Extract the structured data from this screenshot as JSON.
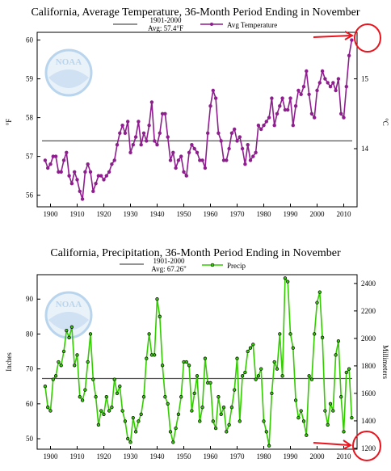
{
  "chart_data": [
    {
      "type": "line",
      "title": "California, Average Temperature, 36-Month Period Ending in November",
      "xlabel": "",
      "ylabel": "°F",
      "ylabel_right": "°C",
      "xlim": [
        1895,
        2015
      ],
      "ylim": [
        55.7,
        60.2
      ],
      "xticks": [
        "1900",
        "1910",
        "1920",
        "1930",
        "1940",
        "1950",
        "1960",
        "1970",
        "1980",
        "1990",
        "2000",
        "2010"
      ],
      "yticks": [
        "56",
        "57",
        "58",
        "59",
        "60"
      ],
      "yticks_right": [
        "14",
        "15"
      ],
      "grid": false,
      "legend_position": "top",
      "reference_line": {
        "label_lines": [
          "1901-2000",
          "Avg: 57.4°F"
        ],
        "value": 57.4
      },
      "series": [
        {
          "name": "Avg Temperature",
          "color": "#8e1d8e",
          "x": [
            1898,
            1899,
            1900,
            1901,
            1902,
            1903,
            1904,
            1905,
            1906,
            1907,
            1908,
            1909,
            1910,
            1911,
            1912,
            1913,
            1914,
            1915,
            1916,
            1917,
            1918,
            1919,
            1920,
            1921,
            1922,
            1923,
            1924,
            1925,
            1926,
            1927,
            1928,
            1929,
            1930,
            1931,
            1932,
            1933,
            1934,
            1935,
            1936,
            1937,
            1938,
            1939,
            1940,
            1941,
            1942,
            1943,
            1944,
            1945,
            1946,
            1947,
            1948,
            1949,
            1950,
            1951,
            1952,
            1953,
            1954,
            1955,
            1956,
            1957,
            1958,
            1959,
            1960,
            1961,
            1962,
            1963,
            1964,
            1965,
            1966,
            1967,
            1968,
            1969,
            1970,
            1971,
            1972,
            1973,
            1974,
            1975,
            1976,
            1977,
            1978,
            1979,
            1980,
            1981,
            1982,
            1983,
            1984,
            1985,
            1986,
            1987,
            1988,
            1989,
            1990,
            1991,
            1992,
            1993,
            1994,
            1995,
            1996,
            1997,
            1998,
            1999,
            2000,
            2001,
            2002,
            2003,
            2004,
            2005,
            2006,
            2007,
            2008,
            2009,
            2010,
            2011,
            2012,
            2013
          ],
          "values": [
            56.9,
            56.7,
            56.8,
            57.0,
            57.0,
            56.6,
            56.6,
            56.9,
            57.1,
            56.5,
            56.3,
            56.6,
            56.4,
            56.1,
            55.9,
            56.6,
            56.8,
            56.6,
            56.1,
            56.3,
            56.5,
            56.5,
            56.4,
            56.5,
            56.6,
            56.8,
            56.9,
            57.3,
            57.6,
            57.8,
            57.6,
            57.9,
            57.1,
            57.3,
            57.5,
            57.9,
            57.3,
            57.6,
            57.4,
            57.8,
            58.4,
            57.4,
            57.3,
            57.6,
            58.1,
            58.1,
            57.5,
            56.9,
            57.1,
            56.7,
            56.9,
            57.0,
            56.6,
            56.5,
            57.1,
            57.3,
            57.2,
            57.1,
            56.9,
            56.9,
            56.7,
            57.6,
            58.3,
            58.7,
            58.5,
            57.6,
            57.4,
            56.9,
            56.9,
            57.2,
            57.6,
            57.7,
            57.4,
            57.5,
            57.2,
            56.8,
            57.3,
            56.9,
            57.0,
            57.1,
            57.8,
            57.7,
            57.8,
            57.9,
            58.0,
            58.5,
            57.8,
            58.1,
            58.3,
            58.5,
            58.2,
            58.2,
            58.5,
            57.8,
            58.3,
            58.7,
            58.6,
            58.8,
            59.2,
            58.6,
            58.1,
            58.0,
            58.7,
            58.9,
            59.2,
            59.0,
            58.9,
            58.8,
            58.9,
            58.7,
            59.0,
            58.1,
            58.0,
            58.8,
            59.6,
            60.0
          ]
        }
      ]
    },
    {
      "type": "line",
      "title": "California, Precipitation, 36-Month Period Ending in November",
      "xlabel": "",
      "ylabel": "Inches",
      "ylabel_right": "Millimeters",
      "xlim": [
        1895,
        2015
      ],
      "ylim": [
        47,
        97
      ],
      "xticks": [
        "1900",
        "1910",
        "1920",
        "1930",
        "1940",
        "1950",
        "1960",
        "1970",
        "1980",
        "1990",
        "2000",
        "2010"
      ],
      "yticks": [
        "50",
        "60",
        "70",
        "80",
        "90"
      ],
      "yticks_right": [
        "1200",
        "1400",
        "1600",
        "1800",
        "2000",
        "2200",
        "2400"
      ],
      "grid": false,
      "legend_position": "top",
      "reference_line": {
        "label_lines": [
          "1901-2000",
          "Avg: 67.26\""
        ],
        "value": 67.26
      },
      "series": [
        {
          "name": "Precip",
          "color": "#33cc00",
          "x": [
            1898,
            1899,
            1900,
            1901,
            1902,
            1903,
            1904,
            1905,
            1906,
            1907,
            1908,
            1909,
            1910,
            1911,
            1912,
            1913,
            1914,
            1915,
            1916,
            1917,
            1918,
            1919,
            1920,
            1921,
            1922,
            1923,
            1924,
            1925,
            1926,
            1927,
            1928,
            1929,
            1930,
            1931,
            1932,
            1933,
            1934,
            1935,
            1936,
            1937,
            1938,
            1939,
            1940,
            1941,
            1942,
            1943,
            1944,
            1945,
            1946,
            1947,
            1948,
            1949,
            1950,
            1951,
            1952,
            1953,
            1954,
            1955,
            1956,
            1957,
            1958,
            1959,
            1960,
            1961,
            1962,
            1963,
            1964,
            1965,
            1966,
            1967,
            1968,
            1969,
            1970,
            1971,
            1972,
            1973,
            1974,
            1975,
            1976,
            1977,
            1978,
            1979,
            1980,
            1981,
            1982,
            1983,
            1984,
            1985,
            1986,
            1987,
            1988,
            1989,
            1990,
            1991,
            1992,
            1993,
            1994,
            1995,
            1996,
            1997,
            1998,
            1999,
            2000,
            2001,
            2002,
            2003,
            2004,
            2005,
            2006,
            2007,
            2008,
            2009,
            2010,
            2011,
            2012,
            2013
          ],
          "values": [
            65,
            59,
            58,
            67,
            68,
            72,
            71,
            75,
            81,
            79,
            82,
            71,
            74,
            62,
            61,
            64,
            72,
            80,
            67,
            62,
            54,
            58,
            57,
            62,
            58,
            59,
            67,
            63,
            65,
            58,
            55,
            50,
            49,
            56,
            52,
            55,
            57,
            62,
            73,
            80,
            74,
            74,
            90,
            85,
            71,
            62,
            60,
            52,
            49,
            53,
            57,
            62,
            72,
            72,
            71,
            58,
            63,
            68,
            55,
            59,
            73,
            66,
            66,
            55,
            53,
            62,
            57,
            59,
            52,
            54,
            59,
            64,
            73,
            55,
            68,
            69,
            75,
            76,
            77,
            67,
            68,
            70,
            55,
            52,
            48,
            63,
            72,
            70,
            80,
            68,
            96,
            95,
            80,
            76,
            61,
            56,
            58,
            55,
            51,
            68,
            67,
            80,
            89,
            92,
            79,
            58,
            54,
            60,
            58,
            74,
            78,
            62,
            52,
            69,
            70,
            56
          ]
        }
      ]
    }
  ],
  "logo_text": "NOAA",
  "colors": {
    "temp_line": "#8e1d8e",
    "precip_line": "#33cc00",
    "avg_line": "#555555",
    "annotation": "#e8141e",
    "logo": "#b9d5ee"
  }
}
